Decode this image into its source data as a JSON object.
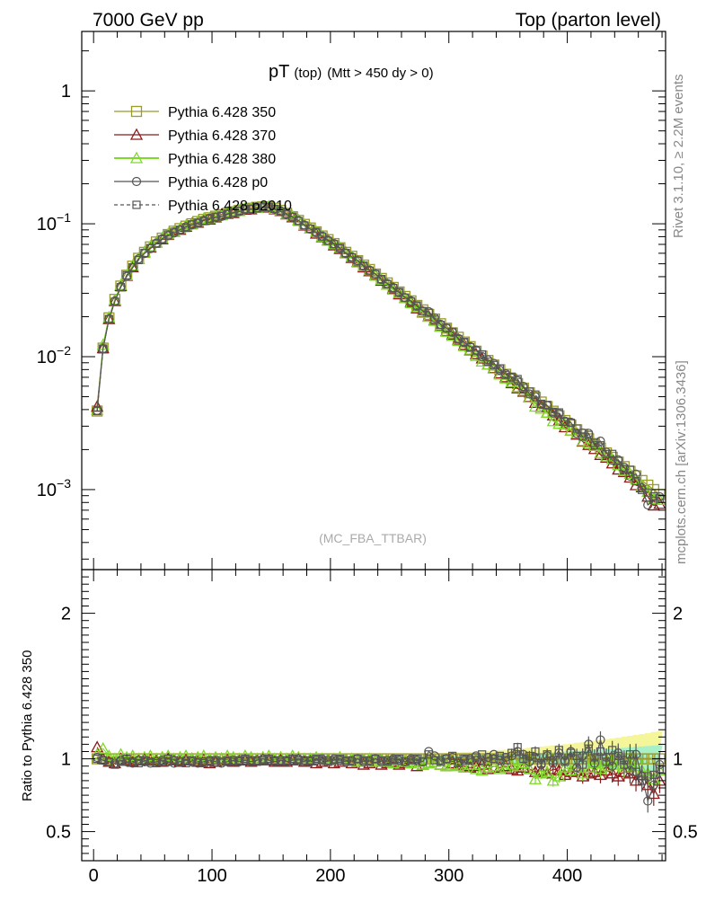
{
  "header": {
    "left": "7000 GeV pp",
    "right": "Top (parton level)"
  },
  "side_text": {
    "rivet": "Rivet 3.1.10, ≥ 2.2M events",
    "mcplots": "mcplots.cern.ch [arXiv:1306.3436]"
  },
  "plot_title": {
    "main": "pT",
    "sub1": "(top)",
    "sub2": "(Mtt > 450 dy > 0)"
  },
  "watermark": "(MC_FBA_TTBAR)",
  "ratio_ylabel": "Ratio to Pythia 6.428 350",
  "colors": {
    "s350": "#9a9a2a",
    "s370": "#8b1a1a",
    "s380": "#7fd92a",
    "p0": "#555555",
    "p2010": "#555555",
    "band_outer": "#f5f59a",
    "band_inner": "#a8f0c8"
  },
  "chart_data": {
    "type": "line",
    "x_label": "",
    "xlim": [
      -10,
      483
    ],
    "main": {
      "yscale": "log",
      "ylim": [
        0.00025,
        2.8
      ],
      "y_ticks": [
        {
          "v": 1,
          "t": "1"
        },
        {
          "v": 0.1,
          "t": "10",
          "e": "−1"
        },
        {
          "v": 0.01,
          "t": "10",
          "e": "−2"
        },
        {
          "v": 0.001,
          "t": "10",
          "e": "−3"
        }
      ]
    },
    "ratio": {
      "ylim": [
        0.3,
        2.3
      ],
      "y_ticks": [
        {
          "v": 0.5,
          "t": "0.5"
        },
        {
          "v": 1,
          "t": "1"
        },
        {
          "v": 2,
          "t": "2"
        }
      ]
    },
    "x_ticks": [
      0,
      100,
      200,
      300,
      400
    ],
    "legend": [
      {
        "key": "s350",
        "label": "Pythia 6.428 350",
        "marker": "square",
        "dash": false
      },
      {
        "key": "s370",
        "label": "Pythia 6.428 370",
        "marker": "triangle",
        "dash": false
      },
      {
        "key": "s380",
        "label": "Pythia 6.428 380",
        "marker": "triangle",
        "dash": false
      },
      {
        "key": "p0",
        "label": "Pythia 6.428 p0",
        "marker": "circle",
        "dash": false
      },
      {
        "key": "p2010",
        "label": "Pythia 6.428 p2010",
        "marker": "square-small",
        "dash": true
      }
    ],
    "x": [
      3,
      8,
      13,
      18,
      23,
      28,
      33,
      38,
      43,
      48,
      53,
      58,
      63,
      68,
      73,
      78,
      83,
      88,
      93,
      98,
      103,
      108,
      113,
      118,
      123,
      128,
      133,
      138,
      143,
      148,
      153,
      158,
      163,
      168,
      173,
      178,
      183,
      188,
      193,
      198,
      203,
      208,
      213,
      218,
      223,
      228,
      233,
      238,
      243,
      248,
      253,
      258,
      263,
      268,
      273,
      278,
      283,
      288,
      293,
      298,
      303,
      308,
      313,
      318,
      323,
      328,
      333,
      338,
      343,
      348,
      353,
      358,
      363,
      368,
      373,
      378,
      383,
      388,
      393,
      398,
      403,
      408,
      413,
      418,
      423,
      428,
      433,
      438,
      443,
      448,
      453,
      458,
      463,
      468,
      473,
      478
    ],
    "values": [
      0.0039,
      0.0116,
      0.0196,
      0.027,
      0.034,
      0.041,
      0.048,
      0.055,
      0.061,
      0.067,
      0.073,
      0.078,
      0.083,
      0.088,
      0.092,
      0.096,
      0.1,
      0.104,
      0.108,
      0.111,
      0.114,
      0.117,
      0.12,
      0.123,
      0.126,
      0.129,
      0.131,
      0.133,
      0.134,
      0.134,
      0.131,
      0.126,
      0.12,
      0.113,
      0.106,
      0.099,
      0.093,
      0.087,
      0.081,
      0.076,
      0.071,
      0.066,
      0.061,
      0.057,
      0.0528,
      0.0489,
      0.0453,
      0.0419,
      0.0388,
      0.0359,
      0.0332,
      0.0307,
      0.0284,
      0.0263,
      0.0243,
      0.0225,
      0.0208,
      0.0192,
      0.0177,
      0.0164,
      0.0151,
      0.014,
      0.0129,
      0.0119,
      0.011,
      0.0101,
      0.00937,
      0.00865,
      0.00798,
      0.00737,
      0.0068,
      0.00628,
      0.0058,
      0.00535,
      0.00494,
      0.00456,
      0.00421,
      0.00389,
      0.00359,
      0.00331,
      0.00306,
      0.00282,
      0.00261,
      0.00241,
      0.00222,
      0.00205,
      0.00189,
      0.00175,
      0.00161,
      0.00149,
      0.00137,
      0.00127,
      0.00117,
      0.00108,
      0.001,
      0.00092
    ],
    "series_ratio": {
      "s370": [
        1.08,
        1.0,
        0.98,
        0.97,
        1.0,
        0.99,
        0.98,
        0.99,
        1.0,
        0.99,
        0.99,
        0.98,
        1.0,
        0.99,
        0.98,
        0.99,
        1.0,
        0.98,
        0.99,
        0.97,
        0.98,
        1.0,
        0.99,
        0.98,
        0.99,
        0.99,
        0.98,
        0.99,
        1.0,
        0.99,
        0.98,
        0.99,
        0.98,
        0.99,
        1.0,
        0.98,
        0.99,
        0.97,
        0.98,
        0.99,
        0.97,
        0.98,
        0.99,
        0.97,
        0.98,
        0.96,
        0.97,
        0.98,
        0.96,
        0.97,
        0.98,
        0.96,
        0.97,
        0.98,
        0.95,
        0.96,
        0.97,
        0.98,
        0.96,
        0.95,
        0.97,
        0.96,
        0.95,
        0.94,
        0.95,
        0.96,
        0.93,
        0.95,
        0.94,
        0.95,
        0.93,
        0.92,
        0.94,
        0.93,
        0.91,
        0.92,
        0.9,
        0.93,
        0.92,
        0.89,
        0.91,
        0.92,
        0.88,
        0.9,
        0.91,
        0.89,
        0.92,
        0.9,
        0.88,
        0.91,
        0.9,
        0.85,
        0.89,
        0.82,
        0.76,
        0.85
      ],
      "s380": [
        1.03,
        1.07,
        1.02,
        1.0,
        1.03,
        1.01,
        1.02,
        1.0,
        1.01,
        1.02,
        1.0,
        1.01,
        1.02,
        1.0,
        1.01,
        1.02,
        1.0,
        1.01,
        1.02,
        1.0,
        1.01,
        1.0,
        1.02,
        1.01,
        1.0,
        1.02,
        1.01,
        1.0,
        1.01,
        1.02,
        1.0,
        1.01,
        1.0,
        1.02,
        1.01,
        1.0,
        1.0,
        1.01,
        1.0,
        0.99,
        1.0,
        1.01,
        0.99,
        1.0,
        0.98,
        0.99,
        1.0,
        0.98,
        0.99,
        0.98,
        0.97,
        0.99,
        0.98,
        0.97,
        0.98,
        0.96,
        0.97,
        0.98,
        0.96,
        0.95,
        0.96,
        0.95,
        0.94,
        0.96,
        0.93,
        0.92,
        0.94,
        0.95,
        0.93,
        0.94,
        0.96,
        0.95,
        0.97,
        0.93,
        0.86,
        0.9,
        0.91,
        0.85,
        0.88,
        0.94,
        0.92,
        0.95,
        0.9,
        0.94,
        0.97,
        0.93,
        0.95,
        0.98,
        0.96,
        0.94,
        0.97,
        0.95,
        0.92,
        0.9,
        0.86,
        0.92
      ],
      "p0": [
        1.01,
        0.99,
        0.98,
        0.97,
        0.99,
        0.98,
        0.97,
        0.99,
        0.98,
        0.97,
        0.98,
        0.99,
        0.98,
        0.97,
        0.98,
        0.99,
        0.98,
        0.97,
        0.98,
        0.99,
        0.98,
        0.97,
        0.98,
        0.99,
        0.98,
        0.99,
        0.98,
        0.99,
        1.0,
        0.99,
        0.98,
        0.99,
        0.98,
        0.99,
        1.0,
        0.99,
        0.98,
        0.99,
        1.0,
        0.99,
        1.0,
        0.99,
        0.98,
        0.99,
        1.0,
        0.98,
        0.99,
        1.0,
        0.98,
        0.99,
        1.0,
        0.99,
        0.98,
        1.0,
        0.99,
        0.98,
        1.05,
        1.02,
        0.99,
        1.0,
        1.01,
        0.98,
        0.99,
        1.0,
        1.02,
        0.99,
        1.01,
        1.03,
        0.99,
        1.01,
        1.02,
        1.05,
        1.03,
        0.98,
        1.01,
        0.96,
        1.02,
        0.97,
        1.04,
        0.99,
        1.05,
        0.94,
        1.02,
        1.1,
        0.97,
        1.13,
        1.01,
        0.95,
        1.04,
        0.99,
        0.92,
        1.03,
        0.88,
        0.71,
        0.82,
        0.96
      ],
      "p2010": [
        1.0,
        0.99,
        0.98,
        0.96,
        0.98,
        1.0,
        0.98,
        0.97,
        0.99,
        0.98,
        0.97,
        0.98,
        1.0,
        0.99,
        0.98,
        0.97,
        0.99,
        0.98,
        0.97,
        0.98,
        0.99,
        0.98,
        0.99,
        0.98,
        0.99,
        1.0,
        0.99,
        0.98,
        0.99,
        1.0,
        0.99,
        0.98,
        0.99,
        1.0,
        0.99,
        0.98,
        0.99,
        1.0,
        0.99,
        0.98,
        0.99,
        1.0,
        0.99,
        0.98,
        1.0,
        0.99,
        0.98,
        1.0,
        0.99,
        0.98,
        0.99,
        1.0,
        0.98,
        0.99,
        1.0,
        0.98,
        1.03,
        0.99,
        0.98,
        1.0,
        1.02,
        0.97,
        1.0,
        0.99,
        1.01,
        1.03,
        0.98,
        1.0,
        1.02,
        0.99,
        1.04,
        1.08,
        1.0,
        1.02,
        1.05,
        0.97,
        1.03,
        0.99,
        1.06,
        0.98,
        1.04,
        1.02,
        0.96,
        1.07,
        1.01,
        1.05,
        0.98,
        1.06,
        1.02,
        0.96,
        1.03,
        0.91,
        0.85,
        0.88,
        0.89,
        0.93
      ]
    },
    "band_half_width": [
      0.01,
      0.01,
      0.01,
      0.01,
      0.01,
      0.01,
      0.01,
      0.01,
      0.01,
      0.01,
      0.01,
      0.01,
      0.01,
      0.01,
      0.01,
      0.01,
      0.01,
      0.01,
      0.01,
      0.01,
      0.01,
      0.01,
      0.01,
      0.01,
      0.01,
      0.01,
      0.01,
      0.01,
      0.01,
      0.01,
      0.01,
      0.01,
      0.01,
      0.01,
      0.01,
      0.01,
      0.01,
      0.01,
      0.01,
      0.01,
      0.01,
      0.01,
      0.01,
      0.012,
      0.012,
      0.012,
      0.013,
      0.013,
      0.013,
      0.014,
      0.014,
      0.015,
      0.015,
      0.016,
      0.016,
      0.017,
      0.018,
      0.018,
      0.019,
      0.02,
      0.021,
      0.022,
      0.023,
      0.024,
      0.025,
      0.026,
      0.027,
      0.028,
      0.03,
      0.031,
      0.033,
      0.034,
      0.036,
      0.038,
      0.04,
      0.042,
      0.044,
      0.046,
      0.048,
      0.05,
      0.052,
      0.055,
      0.057,
      0.06,
      0.062,
      0.065,
      0.068,
      0.07,
      0.073,
      0.076,
      0.079,
      0.082,
      0.085,
      0.088,
      0.092,
      0.095
    ]
  }
}
